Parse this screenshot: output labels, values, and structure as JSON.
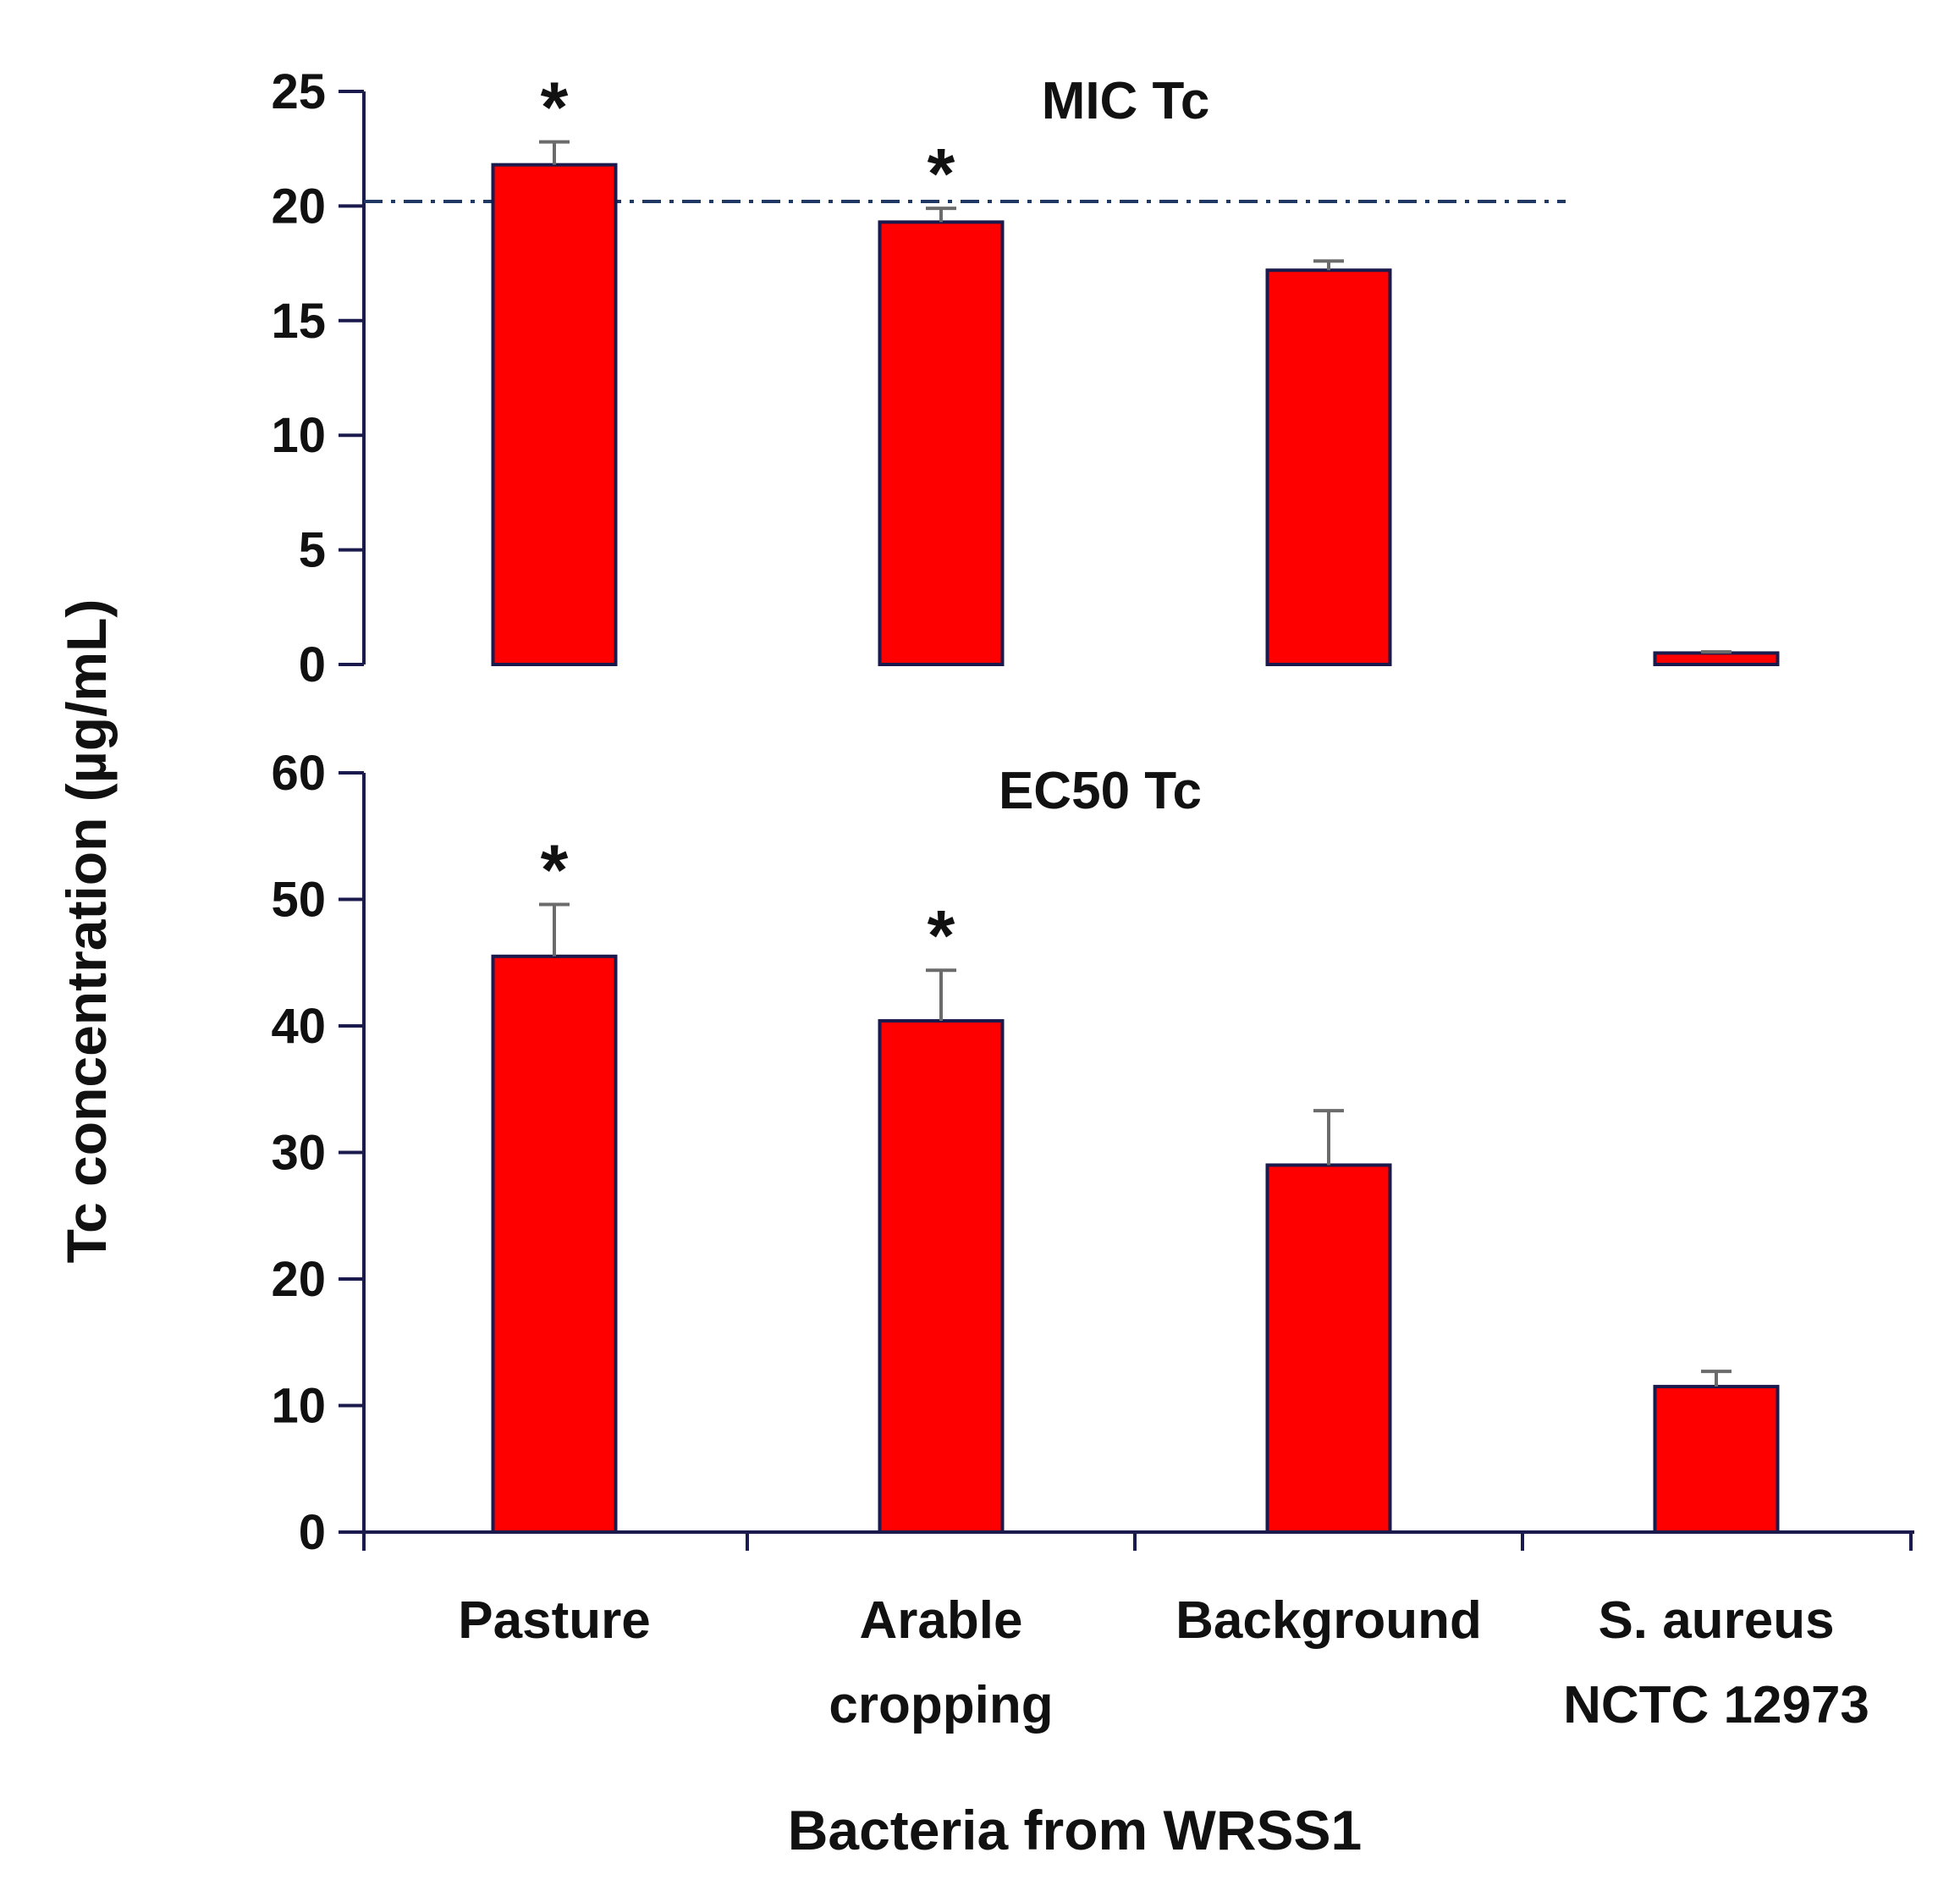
{
  "chart_data": {
    "type": "bar",
    "xlabel": "Bacteria from WRSS1",
    "ylabel": "Tc concentration (µg/mL)",
    "categories": [
      [
        "Pasture"
      ],
      [
        "Arable",
        "cropping"
      ],
      [
        "Background"
      ],
      [
        "S. aureus",
        "NCTC 12973"
      ]
    ],
    "panels": [
      {
        "title": "MIC Tc",
        "ylim": [
          0,
          25
        ],
        "yticks": [
          0,
          5,
          10,
          15,
          20,
          25
        ],
        "values": [
          21.8,
          19.3,
          17.2,
          0.5
        ],
        "errors": [
          1.0,
          0.6,
          0.4,
          0.05
        ],
        "significance": [
          "*",
          "*",
          "",
          ""
        ],
        "reference_line": 20.2
      },
      {
        "title": "EC50 Tc",
        "ylim": [
          0,
          60
        ],
        "yticks": [
          0,
          10,
          20,
          30,
          40,
          50,
          60
        ],
        "values": [
          45.5,
          40.4,
          29.0,
          11.5
        ],
        "errors": [
          4.1,
          4.0,
          4.3,
          1.2
        ],
        "significance": [
          "*",
          "*",
          "",
          ""
        ]
      }
    ]
  },
  "colors": {
    "bar_fill": "#ff0000",
    "bar_edge": "#1a1a4d",
    "axis": "#1a1a4d",
    "error_bar": "#6b6b6b",
    "reference_line": "#1f3864"
  }
}
